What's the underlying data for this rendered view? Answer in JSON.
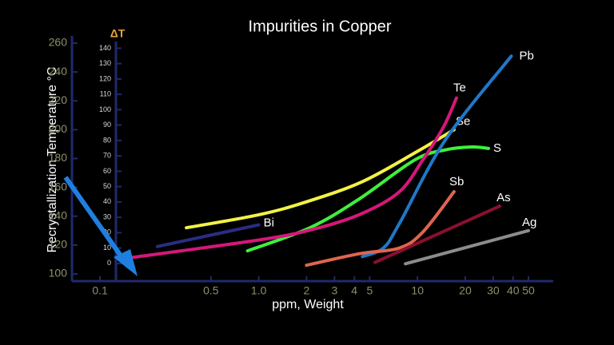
{
  "chart_data": {
    "type": "line",
    "title": "Impurities in Copper",
    "xlabel": "ppm, Weight",
    "ylabel": "Recrystallization Temperature  °C",
    "y2label": "ΔT",
    "xscale": "log",
    "xlim": [
      0.09,
      70
    ],
    "xticks": [
      0.1,
      0.5,
      {
        "value": 1,
        "label": "1.0"
      },
      2,
      3,
      4,
      5,
      10,
      20,
      30,
      40,
      50
    ],
    "ylim": [
      95,
      265
    ],
    "yticks": [
      100,
      120,
      140,
      160,
      180,
      200,
      220,
      240,
      260
    ],
    "y2lim": [
      -11.5,
      148
    ],
    "y2ticks": [
      0,
      10,
      20,
      30,
      40,
      50,
      60,
      70,
      80,
      90,
      100,
      110,
      120,
      130,
      140
    ],
    "series": [
      {
        "name": "Bi",
        "color": "#2b2c82",
        "x": [
          0.23,
          1.0
        ],
        "values": [
          119,
          134
        ]
      },
      {
        "name": "Se",
        "color": "#f3f245",
        "x": [
          0.35,
          1.0,
          2,
          4.5,
          10,
          17
        ],
        "values": [
          132,
          141,
          150,
          164,
          185,
          200
        ]
      },
      {
        "name": "S",
        "color": "#3ef03c",
        "x": [
          0.85,
          2.1,
          4.3,
          9.6,
          15,
          22,
          28
        ],
        "values": [
          116,
          132,
          152,
          179,
          186,
          188,
          187
        ]
      },
      {
        "name": "Te",
        "color": "#d6177a",
        "x": [
          0.15,
          1.07,
          2.4,
          4.5,
          7.7,
          10.8,
          14.6,
          17.6
        ],
        "values": [
          111,
          124,
          132,
          142,
          157,
          179,
          202,
          222
        ]
      },
      {
        "name": "Pb",
        "color": "#1f78c8",
        "x": [
          4.5,
          6.1,
          7.7,
          15,
          39
        ],
        "values": [
          112,
          118,
          135,
          193,
          251
        ]
      },
      {
        "name": "Sb",
        "color": "#e0654f",
        "x": [
          2,
          4.3,
          7.7,
          10.8,
          17
        ],
        "values": [
          106,
          114,
          118,
          129,
          157
        ]
      },
      {
        "name": "As",
        "color": "#8a1030",
        "x": [
          5.4,
          33
        ],
        "values": [
          108,
          147
        ]
      },
      {
        "name": "Ag",
        "color": "#8c8c8c",
        "x": [
          8.4,
          50
        ],
        "values": [
          107,
          130
        ]
      }
    ]
  }
}
